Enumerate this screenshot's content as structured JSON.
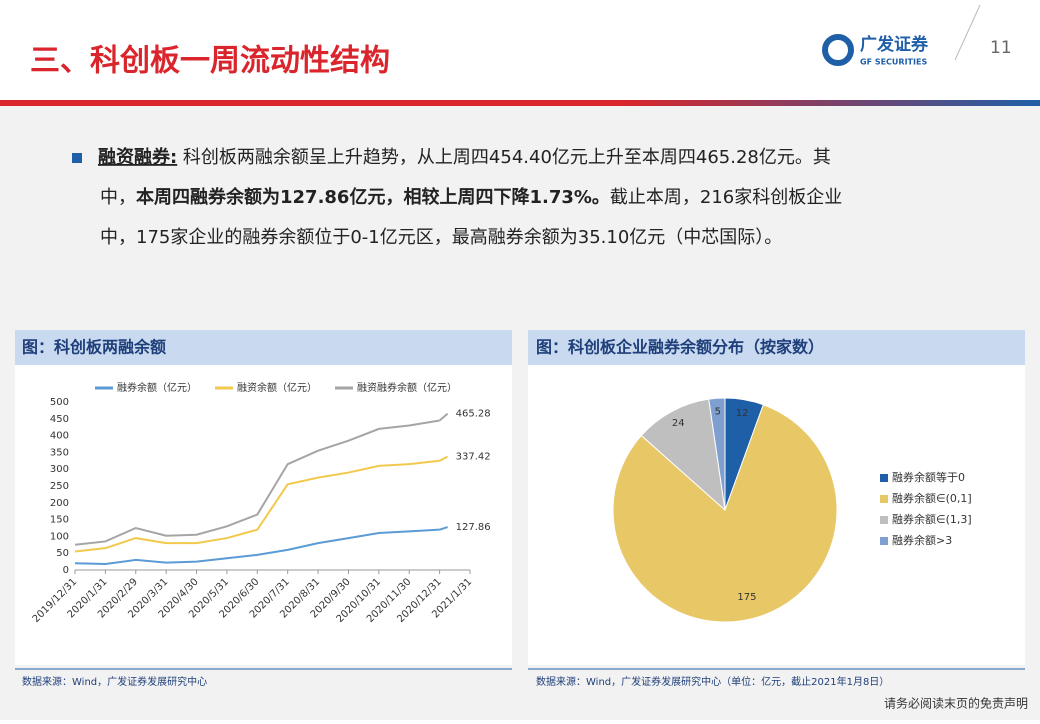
{
  "header": {
    "title": "三、科创板一周流动性结构",
    "logo_cn": "广发证券",
    "logo_en": "GF SECURITIES",
    "page": "11"
  },
  "paragraph": [
    [
      {
        "text": "融资融券:",
        "bold": true
      },
      {
        "text": " 科创板两融余额呈上升趋势，从上周四454.40亿元上升至本周四465.28亿元。其",
        "bold": false
      }
    ],
    [
      {
        "text": "中，",
        "bold": false
      },
      {
        "text": "本周四融券余额为127.86亿元，相较上周四下降1.73%。",
        "bold": true
      },
      {
        "text": "截止本周，216家科创板企业",
        "bold": false
      }
    ],
    [
      {
        "text": "中，175家企业的融券余额位于0-1亿元区，最高融券余额为35.10亿元（中芯国际）。",
        "bold": false
      }
    ]
  ],
  "chart_data": [
    {
      "type": "line",
      "title": "图：科创板两融余额",
      "source": "数据来源：Wind，广发证券发展研究中心",
      "categories": [
        "2019/12/31",
        "2020/1/31",
        "2020/2/29",
        "2020/3/31",
        "2020/4/30",
        "2020/5/31",
        "2020/6/30",
        "2020/7/31",
        "2020/8/31",
        "2020/9/30",
        "2020/10/31",
        "2020/11/30",
        "2020/12/31",
        "2021/1/31"
      ],
      "ylim": [
        0,
        500
      ],
      "yticks": [
        0,
        50,
        100,
        150,
        200,
        250,
        300,
        350,
        400,
        450,
        500
      ],
      "series": [
        {
          "name": "融券余额（亿元）",
          "color": "#5b9bd5",
          "values": [
            20,
            18,
            30,
            22,
            25,
            35,
            45,
            60,
            80,
            95,
            110,
            115,
            120,
            null
          ],
          "end_value": 127.86
        },
        {
          "name": "融资余额（亿元）",
          "color": "#f2c94c",
          "values": [
            55,
            65,
            95,
            80,
            80,
            95,
            120,
            255,
            275,
            290,
            310,
            315,
            325,
            null
          ],
          "end_value": 337.42
        },
        {
          "name": "融资融券余额（亿元）",
          "color": "#a5a5a5",
          "values": [
            75,
            85,
            125,
            102,
            105,
            130,
            165,
            315,
            355,
            385,
            420,
            430,
            445,
            null
          ],
          "end_value": 465.28
        }
      ]
    },
    {
      "type": "pie",
      "title": "图：科创板企业融券余额分布（按家数）",
      "source": "数据来源：Wind，广发证券发展研究中心（单位：亿元，截止2021年1月8日）",
      "categories": [
        "融券余额等于0",
        "融券余额∈(0,1]",
        "融券余额∈(1,3]",
        "融券余额>3"
      ],
      "values": [
        12,
        175,
        24,
        5
      ],
      "colors": [
        "#1f5fa8",
        "#e8c766",
        "#bfbfbf",
        "#7f9fd0"
      ]
    }
  ],
  "footer": "请务必阅读末页的免责声明"
}
